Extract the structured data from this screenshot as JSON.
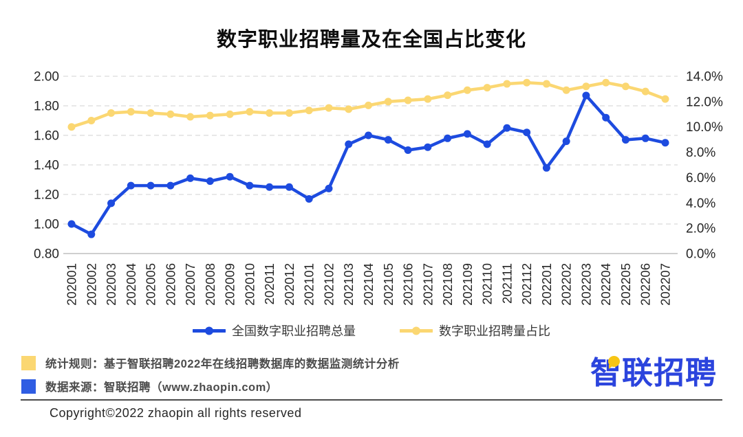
{
  "title": "数字职业招聘量及在全国占比变化",
  "chart_data": {
    "type": "line",
    "categories": [
      "202001",
      "202002",
      "202003",
      "202004",
      "202005",
      "202006",
      "202007",
      "202008",
      "202009",
      "202010",
      "202011",
      "202012",
      "202101",
      "202102",
      "202103",
      "202104",
      "202105",
      "202106",
      "202107",
      "202108",
      "202109",
      "202110",
      "202111",
      "202112",
      "202201",
      "202202",
      "202203",
      "202204",
      "202205",
      "202206",
      "202207"
    ],
    "series": [
      {
        "name": "全国数字职业招聘总量",
        "axis": "left",
        "color": "#1d4bdf",
        "values": [
          1.0,
          0.93,
          1.14,
          1.26,
          1.26,
          1.26,
          1.31,
          1.29,
          1.32,
          1.26,
          1.25,
          1.25,
          1.17,
          1.24,
          1.54,
          1.6,
          1.57,
          1.5,
          1.52,
          1.58,
          1.61,
          1.54,
          1.65,
          1.62,
          1.38,
          1.56,
          1.87,
          1.72,
          1.57,
          1.58,
          1.55
        ]
      },
      {
        "name": "数字职业招聘量占比",
        "axis": "right",
        "color": "#fbd772",
        "values": [
          10.0,
          10.5,
          11.1,
          11.2,
          11.1,
          11.0,
          10.8,
          10.9,
          11.0,
          11.2,
          11.1,
          11.1,
          11.3,
          11.5,
          11.4,
          11.7,
          12.0,
          12.1,
          12.2,
          12.5,
          12.9,
          13.1,
          13.4,
          13.5,
          13.4,
          12.9,
          13.2,
          13.5,
          13.2,
          12.8,
          12.2
        ]
      }
    ],
    "left_axis": {
      "min": 0.8,
      "max": 2.0,
      "ticks": [
        "2.00",
        "1.80",
        "1.60",
        "1.40",
        "1.20",
        "1.00",
        "0.80"
      ]
    },
    "right_axis": {
      "min": 0,
      "max": 14,
      "ticks": [
        "14.0%",
        "12.0%",
        "10.0%",
        "8.0%",
        "6.0%",
        "4.0%",
        "2.0%",
        "0.0%"
      ]
    },
    "grid": "horizontal-dashed",
    "legend_position": "bottom",
    "colors": {
      "grid_line": "#d9d9d9",
      "axis_line": "#bfbfbf",
      "axis_text": "#262626"
    }
  },
  "footnotes": [
    {
      "color": "#fbd772",
      "text": "统计规则：基于智联招聘2022年在线招聘数据库的数据监测统计分析"
    },
    {
      "color": "#2f5de3",
      "text": "数据来源：智联招聘（www.zhaopin.com）"
    }
  ],
  "logo": {
    "text": "智联招聘"
  },
  "copyright": "Copyright©2022 zhaopin all rights reserved"
}
